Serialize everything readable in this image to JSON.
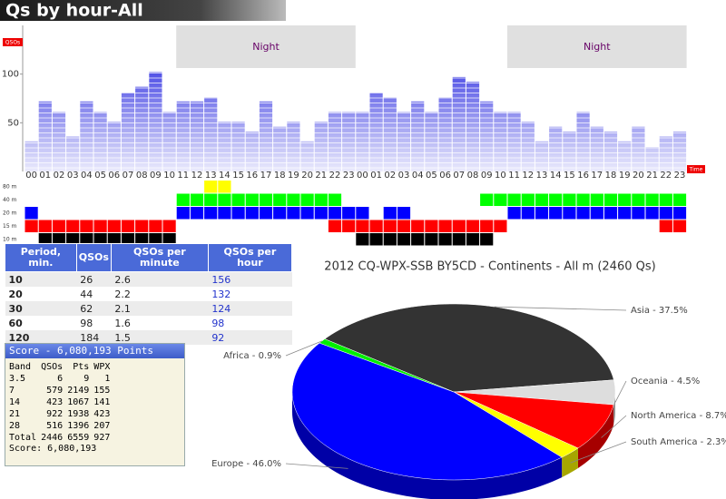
{
  "header": {
    "title": "Qs by hour-All"
  },
  "chart_data": [
    {
      "type": "bar",
      "y_label": "QSOs",
      "x_label": "Time",
      "categories": [
        "00",
        "01",
        "02",
        "03",
        "04",
        "05",
        "06",
        "07",
        "08",
        "09",
        "10",
        "11",
        "12",
        "13",
        "14",
        "15",
        "16",
        "17",
        "18",
        "19",
        "20",
        "21",
        "22",
        "23",
        "00",
        "01",
        "02",
        "03",
        "04",
        "05",
        "06",
        "07",
        "08",
        "09",
        "10",
        "11",
        "12",
        "13",
        "14",
        "15",
        "16",
        "17",
        "18",
        "19",
        "20",
        "21",
        "22",
        "23"
      ],
      "values": [
        31,
        72,
        61,
        36,
        72,
        61,
        51,
        81,
        87,
        102,
        61,
        72,
        72,
        76,
        51,
        51,
        41,
        72,
        46,
        51,
        31,
        51,
        61,
        61,
        61,
        81,
        76,
        61,
        72,
        61,
        76,
        97,
        92,
        72,
        61,
        61,
        51,
        31,
        46,
        41,
        61,
        46,
        41,
        31,
        46,
        25,
        36,
        41
      ],
      "ylim": [
        0,
        150
      ],
      "yticks": [
        50,
        100
      ],
      "annotations": [
        {
          "text": "Night",
          "from": 11,
          "to": 23
        },
        {
          "text": "Night",
          "from": 35,
          "to": 47
        }
      ]
    },
    {
      "type": "pie",
      "title": "2012 CQ-WPX-SSB BY5CD - Continents - All m (2460 Qs)",
      "categories": [
        "Asia",
        "Oceania",
        "North America",
        "South America",
        "Europe",
        "Africa"
      ],
      "values": [
        37.5,
        4.5,
        8.7,
        2.3,
        46.0,
        0.9
      ],
      "value_labels": [
        "Asia - 37.5%",
        "Oceania - 4.5%",
        "North America - 8.7%",
        "South America - 2.3%",
        "Europe - 46.0%",
        "Africa - 0.9%"
      ],
      "colors": [
        "#333333",
        "#dddddd",
        "#ff0000",
        "#ffff00",
        "#0000ff",
        "#00ee00"
      ]
    }
  ],
  "band_activity": {
    "rows": [
      {
        "band": "80 m",
        "color": "#ffff00",
        "hours": [
          [
            13,
            14
          ]
        ]
      },
      {
        "band": "40 m",
        "color": "#00ff00",
        "hours": [
          [
            11,
            22
          ],
          [
            33,
            47
          ]
        ]
      },
      {
        "band": "20 m",
        "color": "#0000ff",
        "hours": [
          [
            0,
            0
          ],
          [
            11,
            24
          ],
          [
            26,
            27
          ],
          [
            35,
            47
          ]
        ]
      },
      {
        "band": "15 m",
        "color": "#ff0000",
        "hours": [
          [
            0,
            10
          ],
          [
            22,
            34
          ],
          [
            46,
            47
          ]
        ]
      },
      {
        "band": "10 m",
        "color": "#000000",
        "hours": [
          [
            1,
            10
          ],
          [
            24,
            33
          ]
        ]
      }
    ]
  },
  "rate_table": {
    "columns": [
      "Period, min.",
      "QSOs",
      "QSOs per minute",
      "QSOs per hour"
    ],
    "rows": [
      [
        10,
        26,
        2.6,
        156
      ],
      [
        20,
        44,
        2.2,
        132
      ],
      [
        30,
        62,
        2.1,
        124
      ],
      [
        60,
        98,
        1.6,
        98
      ],
      [
        120,
        184,
        1.5,
        92
      ]
    ]
  },
  "score": {
    "title": "Score - 6,080,193 Points",
    "columns": [
      "Band",
      "QSOs",
      "Pts",
      "WPX"
    ],
    "rows": [
      [
        3.5,
        6,
        9,
        1
      ],
      [
        7,
        579,
        2149,
        155
      ],
      [
        14,
        423,
        1067,
        141
      ],
      [
        21,
        922,
        1938,
        423
      ],
      [
        28,
        516,
        1396,
        207
      ],
      [
        "Total",
        2446,
        6559,
        927
      ]
    ],
    "footer": "Score: 6,080,193"
  }
}
